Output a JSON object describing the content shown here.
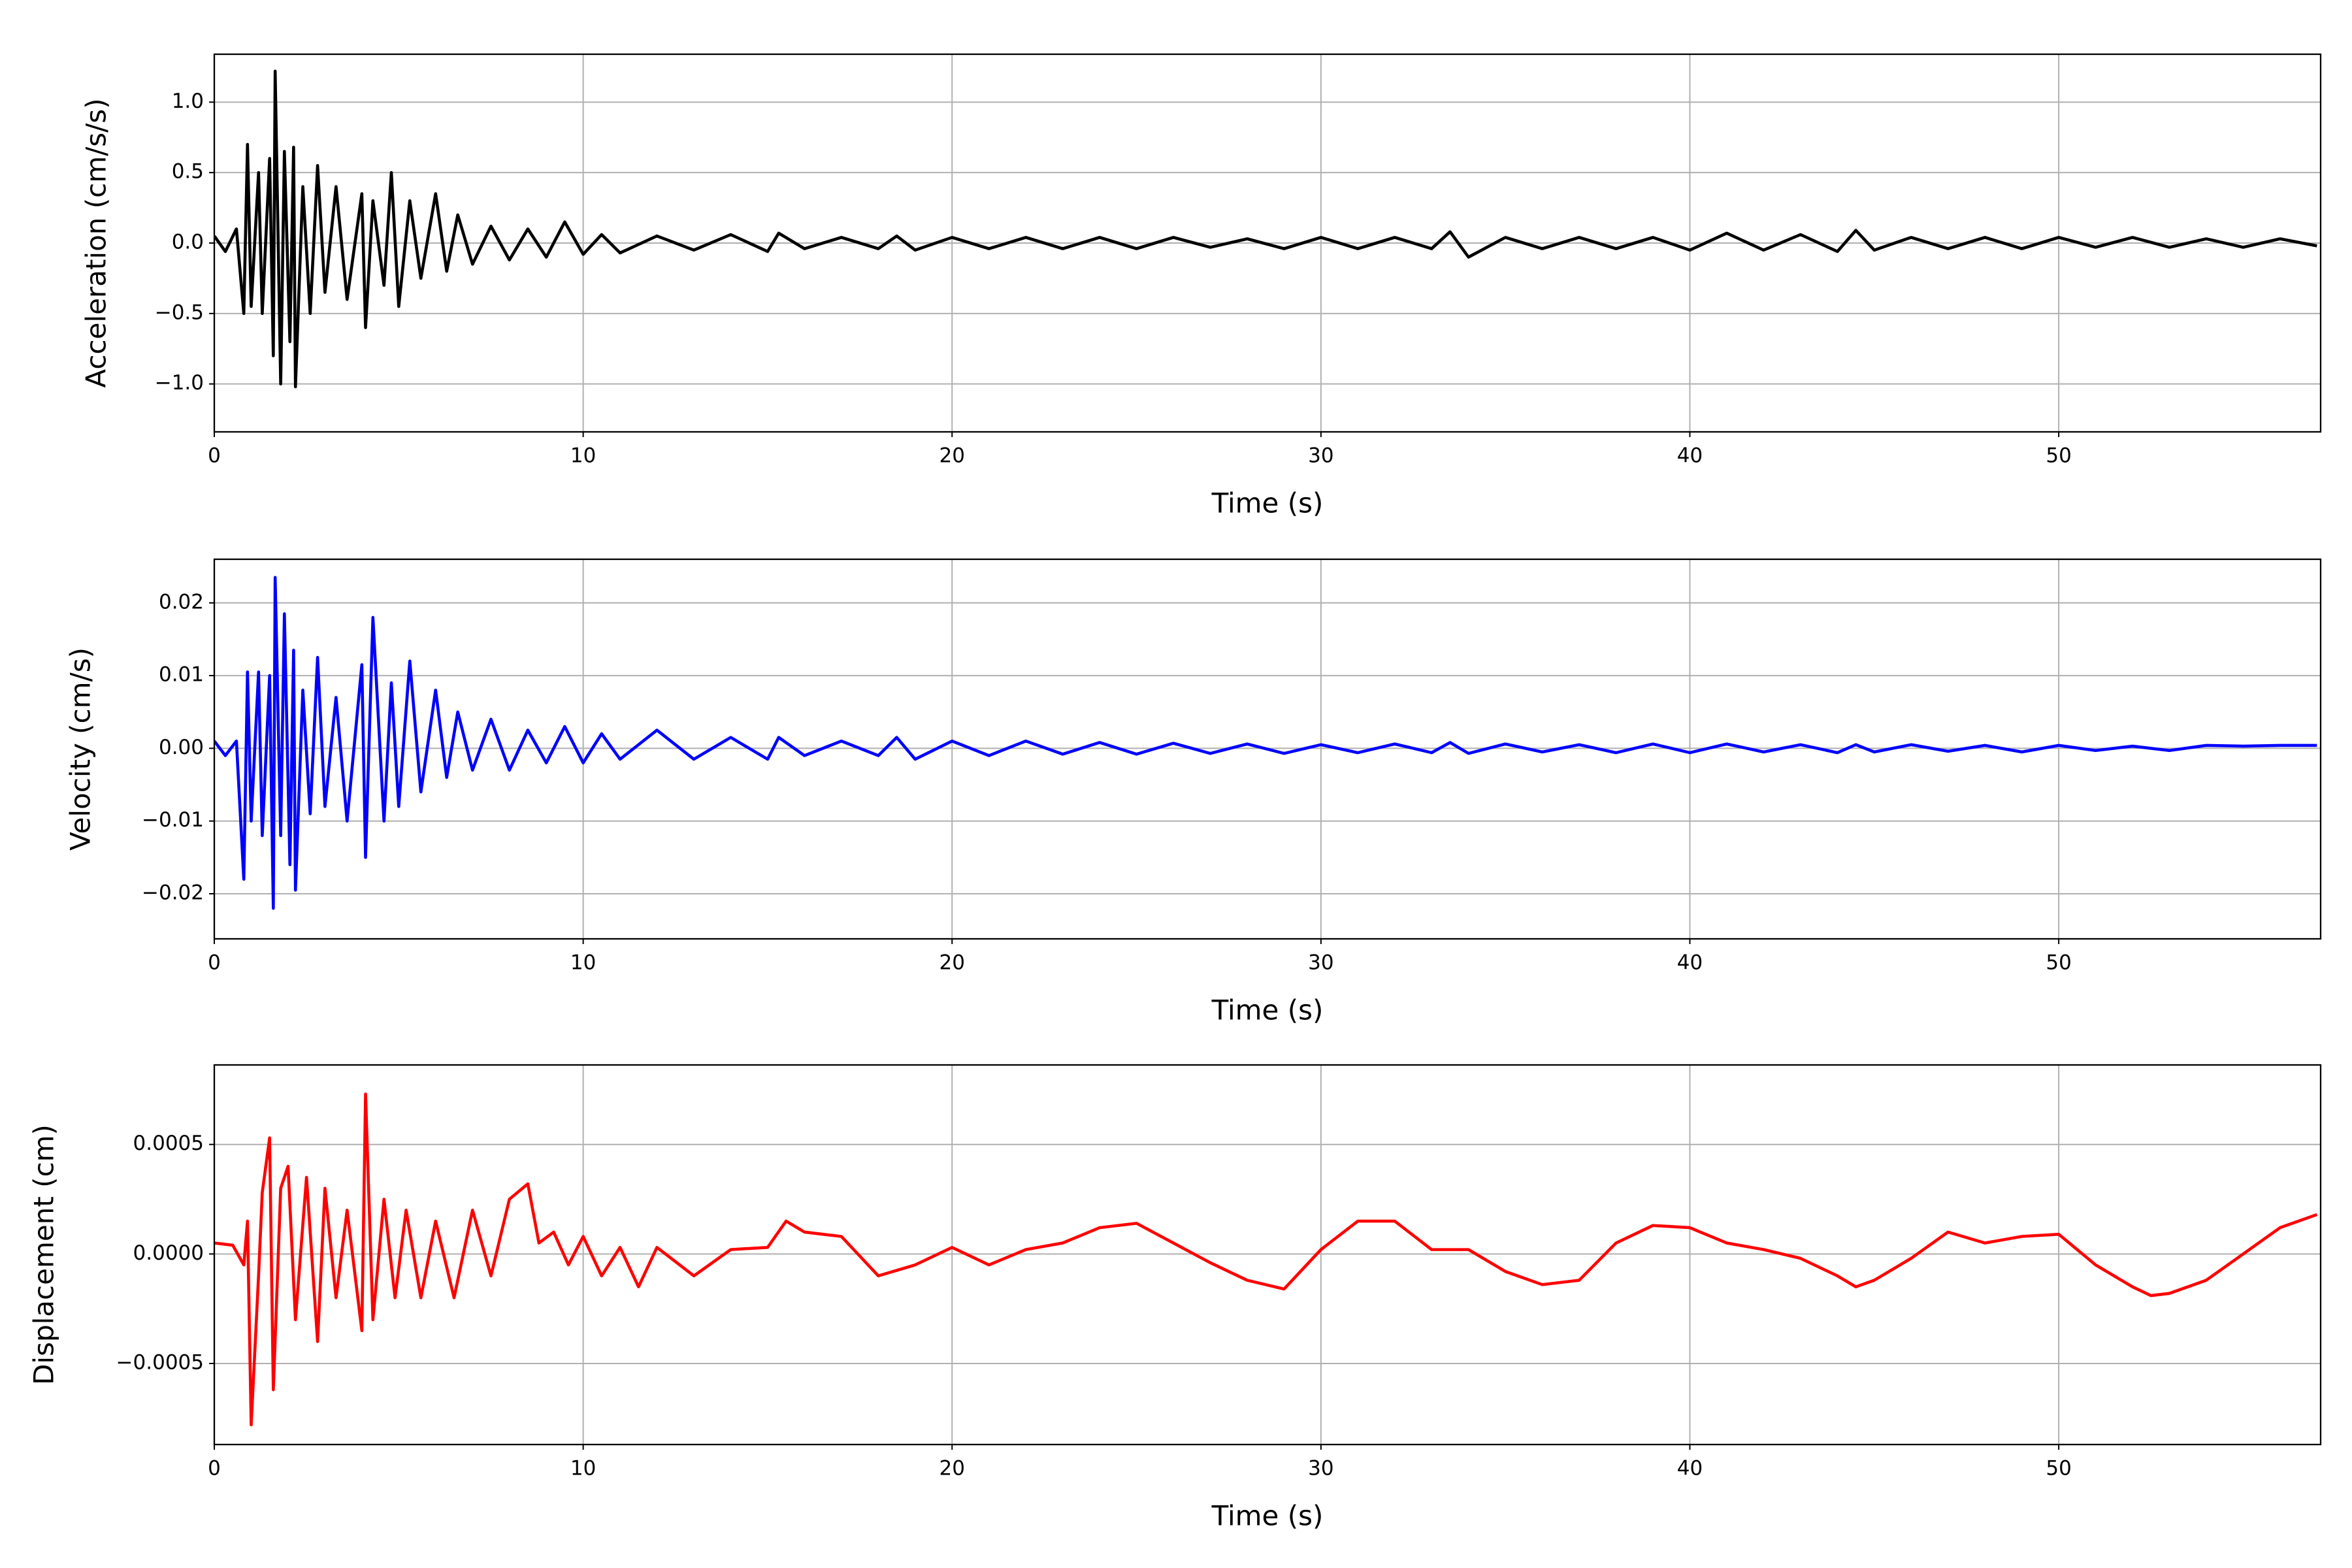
{
  "chart_data": [
    {
      "type": "line",
      "y_label": "Acceleration (cm/s/s)",
      "x_label": "Time (s)",
      "grid": true,
      "xlim": [
        0,
        57.1
      ],
      "xticks": [
        0,
        10,
        20,
        30,
        40,
        50
      ],
      "ylim": [
        -1.34,
        1.34
      ],
      "yticks": [
        {
          "value": -1,
          "label": "−1.0"
        },
        {
          "value": -0.5,
          "label": "−0.5"
        },
        {
          "value": 0,
          "label": "0.0"
        },
        {
          "value": 0.5,
          "label": "0.5"
        },
        {
          "value": 1,
          "label": "1.0"
        }
      ],
      "x": [
        0,
        0.3,
        0.6,
        0.8,
        0.9,
        1.0,
        1.2,
        1.3,
        1.5,
        1.6,
        1.65,
        1.8,
        1.9,
        2.05,
        2.15,
        2.2,
        2.4,
        2.6,
        2.8,
        3.0,
        3.3,
        3.6,
        4.0,
        4.1,
        4.3,
        4.6,
        4.8,
        5.0,
        5.3,
        5.6,
        6.0,
        6.3,
        6.6,
        7.0,
        7.5,
        8.0,
        8.5,
        9.0,
        9.5,
        10,
        10.5,
        11,
        12,
        13,
        14,
        15,
        15.3,
        16,
        17,
        18,
        18.5,
        19,
        20,
        21,
        22,
        23,
        24,
        25,
        26,
        27,
        28,
        29,
        30,
        31,
        32,
        33,
        33.5,
        34,
        35,
        36,
        37,
        38,
        39,
        40,
        41,
        42,
        43,
        44,
        44.5,
        45,
        46,
        47,
        48,
        49,
        50,
        51,
        52,
        53,
        54,
        55,
        56,
        57
      ],
      "series": [
        {
          "color": "#000000",
          "values": [
            0.05,
            -0.06,
            0.1,
            -0.5,
            0.7,
            -0.45,
            0.5,
            -0.5,
            0.6,
            -0.8,
            1.22,
            -1.0,
            0.65,
            -0.7,
            0.68,
            -1.02,
            0.4,
            -0.5,
            0.55,
            -0.35,
            0.4,
            -0.4,
            0.35,
            -0.6,
            0.3,
            -0.3,
            0.5,
            -0.45,
            0.3,
            -0.25,
            0.35,
            -0.2,
            0.2,
            -0.15,
            0.12,
            -0.12,
            0.1,
            -0.1,
            0.15,
            -0.08,
            0.06,
            -0.07,
            0.05,
            -0.05,
            0.06,
            -0.06,
            0.07,
            -0.04,
            0.04,
            -0.04,
            0.05,
            -0.05,
            0.04,
            -0.04,
            0.04,
            -0.04,
            0.04,
            -0.04,
            0.04,
            -0.03,
            0.03,
            -0.04,
            0.04,
            -0.04,
            0.04,
            -0.04,
            0.08,
            -0.1,
            0.04,
            -0.04,
            0.04,
            -0.04,
            0.04,
            -0.05,
            0.07,
            -0.05,
            0.06,
            -0.06,
            0.09,
            -0.05,
            0.04,
            -0.04,
            0.04,
            -0.04,
            0.04,
            -0.03,
            0.04,
            -0.03,
            0.03,
            -0.03,
            0.03,
            -0.02
          ]
        }
      ]
    },
    {
      "type": "line",
      "y_label": "Velocity (cm/s)",
      "x_label": "Time (s)",
      "grid": true,
      "xlim": [
        0,
        57.1
      ],
      "xticks": [
        0,
        10,
        20,
        30,
        40,
        50
      ],
      "ylim": [
        -0.0262,
        0.026
      ],
      "yticks": [
        {
          "value": -0.02,
          "label": "−0.02"
        },
        {
          "value": -0.01,
          "label": "−0.01"
        },
        {
          "value": 0,
          "label": "0.00"
        },
        {
          "value": 0.01,
          "label": "0.01"
        },
        {
          "value": 0.02,
          "label": "0.02"
        }
      ],
      "x": [
        0,
        0.3,
        0.6,
        0.8,
        0.9,
        1.0,
        1.2,
        1.3,
        1.5,
        1.6,
        1.65,
        1.8,
        1.9,
        2.05,
        2.15,
        2.2,
        2.4,
        2.6,
        2.8,
        3.0,
        3.3,
        3.6,
        4.0,
        4.1,
        4.3,
        4.6,
        4.8,
        5.0,
        5.3,
        5.6,
        6.0,
        6.3,
        6.6,
        7.0,
        7.5,
        8.0,
        8.5,
        9.0,
        9.5,
        10,
        10.5,
        11,
        12,
        13,
        14,
        15,
        15.3,
        16,
        17,
        18,
        18.5,
        19,
        20,
        21,
        22,
        23,
        24,
        25,
        26,
        27,
        28,
        29,
        30,
        31,
        32,
        33,
        33.5,
        34,
        35,
        36,
        37,
        38,
        39,
        40,
        41,
        42,
        43,
        44,
        44.5,
        45,
        46,
        47,
        48,
        49,
        50,
        51,
        52,
        53,
        54,
        55,
        56,
        57
      ],
      "series": [
        {
          "color": "#0000ff",
          "values": [
            0.001,
            -0.001,
            0.001,
            -0.018,
            0.0105,
            -0.01,
            0.0105,
            -0.012,
            0.01,
            -0.022,
            0.0235,
            -0.012,
            0.0185,
            -0.016,
            0.0135,
            -0.0195,
            0.008,
            -0.009,
            0.0125,
            -0.008,
            0.007,
            -0.01,
            0.0115,
            -0.015,
            0.018,
            -0.01,
            0.009,
            -0.008,
            0.012,
            -0.006,
            0.008,
            -0.004,
            0.005,
            -0.003,
            0.004,
            -0.003,
            0.0025,
            -0.002,
            0.003,
            -0.002,
            0.002,
            -0.0015,
            0.0025,
            -0.0015,
            0.0015,
            -0.0015,
            0.0015,
            -0.001,
            0.001,
            -0.001,
            0.0015,
            -0.0015,
            0.001,
            -0.001,
            0.001,
            -0.0008,
            0.0008,
            -0.0008,
            0.0007,
            -0.0007,
            0.0006,
            -0.0007,
            0.0005,
            -0.0006,
            0.0006,
            -0.0006,
            0.0008,
            -0.0007,
            0.0006,
            -0.0005,
            0.0005,
            -0.0006,
            0.0006,
            -0.0006,
            0.0006,
            -0.0005,
            0.0005,
            -0.0006,
            0.0005,
            -0.0005,
            0.0005,
            -0.0004,
            0.0004,
            -0.0005,
            0.0004,
            -0.0003,
            0.0003,
            -0.0003,
            0.0004,
            0.0003,
            0.0004,
            0.0004
          ]
        }
      ]
    },
    {
      "type": "line",
      "y_label": "Displacement (cm)",
      "x_label": "Time (s)",
      "grid": true,
      "xlim": [
        0,
        57.1
      ],
      "xticks": [
        0,
        10,
        20,
        30,
        40,
        50
      ],
      "ylim": [
        -0.00087,
        0.000863
      ],
      "yticks": [
        {
          "value": -0.0005,
          "label": "−0.0005"
        },
        {
          "value": 0,
          "label": "0.0000"
        },
        {
          "value": 0.0005,
          "label": "0.0005"
        }
      ],
      "x": [
        0,
        0.5,
        0.8,
        0.9,
        1.0,
        1.2,
        1.3,
        1.5,
        1.6,
        1.8,
        2.0,
        2.2,
        2.5,
        2.8,
        3.0,
        3.3,
        3.6,
        4.0,
        4.1,
        4.3,
        4.6,
        4.9,
        5.2,
        5.6,
        6.0,
        6.5,
        7.0,
        7.5,
        8.0,
        8.5,
        8.8,
        9.2,
        9.6,
        10,
        10.5,
        11,
        11.5,
        12,
        13,
        14,
        15,
        15.5,
        16,
        17,
        18,
        19,
        20,
        21,
        22,
        23,
        24,
        25,
        26,
        27,
        28,
        29,
        30,
        31,
        32,
        33,
        34,
        35,
        36,
        37,
        38,
        39,
        40,
        41,
        42,
        43,
        44,
        44.5,
        45,
        46,
        47,
        48,
        49,
        50,
        51,
        52,
        52.5,
        53,
        54,
        55,
        56,
        57
      ],
      "series": [
        {
          "color": "#ff0000",
          "values": [
            5e-05,
            4e-05,
            -5e-05,
            0.00015,
            -0.00078,
            -0.0001,
            0.00028,
            0.00053,
            -0.00062,
            0.0003,
            0.0004,
            -0.0003,
            0.00035,
            -0.0004,
            0.0003,
            -0.0002,
            0.0002,
            -0.00035,
            0.00073,
            -0.0003,
            0.00025,
            -0.0002,
            0.0002,
            -0.0002,
            0.00015,
            -0.0002,
            0.0002,
            -0.0001,
            0.00025,
            0.00032,
            5e-05,
            0.0001,
            -5e-05,
            8e-05,
            -0.0001,
            3e-05,
            -0.00015,
            3e-05,
            -0.0001,
            2e-05,
            3e-05,
            0.00015,
            0.0001,
            8e-05,
            -0.0001,
            -5e-05,
            3e-05,
            -5e-05,
            2e-05,
            5e-05,
            0.00012,
            0.00014,
            5e-05,
            -4e-05,
            -0.00012,
            -0.00016,
            2e-05,
            0.00015,
            0.00015,
            2e-05,
            2e-05,
            -8e-05,
            -0.00014,
            -0.00012,
            5e-05,
            0.00013,
            0.00012,
            5e-05,
            2e-05,
            -2e-05,
            -0.0001,
            -0.00015,
            -0.00012,
            -2e-05,
            0.0001,
            5e-05,
            8e-05,
            9e-05,
            -5e-05,
            -0.00015,
            -0.00019,
            -0.00018,
            -0.00012,
            0.0,
            0.00012,
            0.00018
          ]
        }
      ]
    }
  ]
}
